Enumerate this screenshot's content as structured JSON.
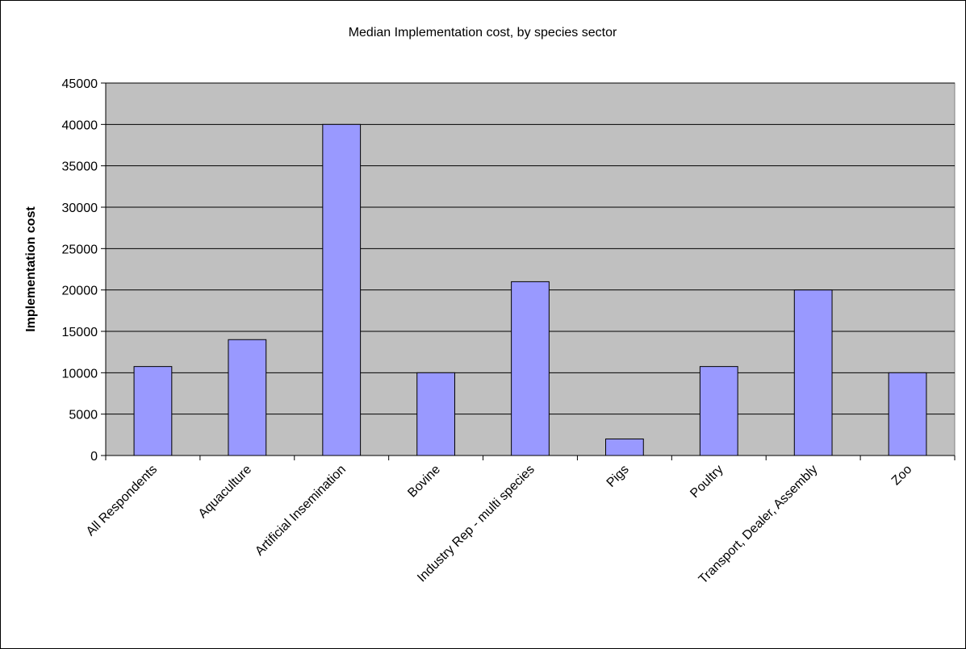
{
  "chart_data": {
    "type": "bar",
    "title": "Median Implementation cost, by species sector",
    "xlabel": "",
    "ylabel": "Implementation cost",
    "ylim": [
      0,
      45000
    ],
    "yticks": [
      0,
      5000,
      10000,
      15000,
      20000,
      25000,
      30000,
      35000,
      40000,
      45000
    ],
    "grid": true,
    "legend": "none",
    "categories": [
      "All Respondents",
      "Aquaculture",
      "Artificial Insemination",
      "Bovine",
      "Industry Rep - multi species",
      "Pigs",
      "Poultry",
      "Transport, Dealer, Assembly",
      "Zoo"
    ],
    "values": [
      10750,
      14000,
      40000,
      10000,
      21000,
      2000,
      10750,
      20000,
      10000
    ],
    "colors": {
      "bar_fill": "#9999ff",
      "bar_stroke": "#000000",
      "plot_bg": "#c0c0c0",
      "grid": "#000000"
    }
  }
}
